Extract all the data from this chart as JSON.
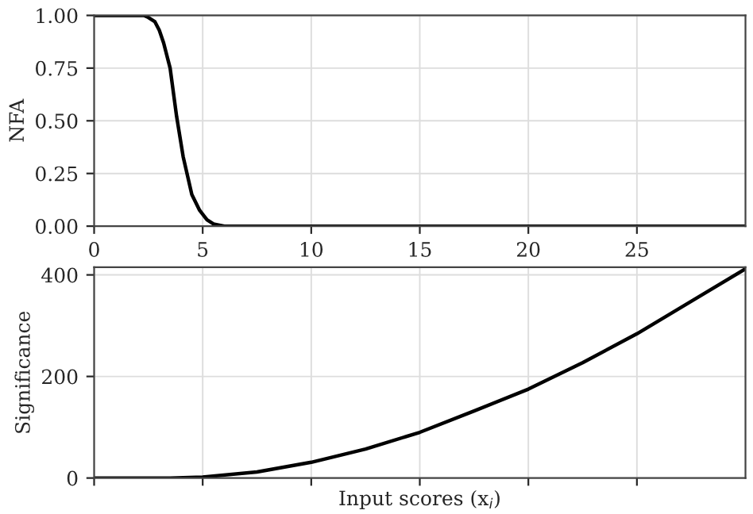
{
  "chart_data": [
    {
      "type": "line",
      "ylabel": "NFA",
      "x": [
        0,
        1,
        2,
        2.3,
        2.5,
        2.8,
        3,
        3.2,
        3.5,
        3.8,
        4.1,
        4.5,
        4.86,
        5.2,
        5.5,
        6,
        8,
        10,
        15,
        20,
        25,
        30
      ],
      "series": [
        {
          "color": "#000000",
          "values": [
            1,
            1,
            1,
            1,
            0.99,
            0.97,
            0.93,
            0.87,
            0.75,
            0.52,
            0.33,
            0.15,
            0.075,
            0.03,
            0.01,
            0,
            0,
            0,
            0,
            0,
            0,
            0
          ]
        }
      ],
      "xlim": [
        0,
        30
      ],
      "xticks": [
        0,
        5,
        10,
        15,
        20,
        25
      ],
      "ylim": [
        0,
        1
      ],
      "yticks": [
        {
          "value": 0,
          "label": "0.00"
        },
        {
          "value": 0.25,
          "label": "0.25"
        },
        {
          "value": 0.5,
          "label": "0.50"
        },
        {
          "value": 0.75,
          "label": "0.75"
        },
        {
          "value": 1,
          "label": "1.00"
        }
      ],
      "grid": true,
      "marker": "none",
      "line_style": "solid"
    },
    {
      "type": "line",
      "ylabel": "Significance",
      "xlabel": "Input scores (x$_{i}$)",
      "x": [
        0,
        2.5,
        3.5,
        5,
        7.5,
        10,
        12.5,
        15,
        17.5,
        20,
        22.5,
        25,
        27.5,
        30
      ],
      "series": [
        {
          "color": "#000000",
          "values": [
            0,
            0,
            0,
            2,
            12,
            31,
            57,
            90,
            132,
            175,
            227,
            284,
            348,
            412
          ]
        }
      ],
      "xlim": [
        0,
        30
      ],
      "xticks": [
        {
          "value": 0,
          "label": null
        },
        {
          "value": 5,
          "label": null
        },
        {
          "value": 10,
          "label": null
        },
        {
          "value": 15,
          "label": null
        },
        {
          "value": 20,
          "label": null
        },
        {
          "value": 25,
          "label": null
        }
      ],
      "ylim": [
        0,
        415
      ],
      "yticks": [
        0,
        200,
        400
      ],
      "grid": true,
      "tick_labels": "y",
      "marker": "none",
      "line_style": "solid"
    }
  ]
}
